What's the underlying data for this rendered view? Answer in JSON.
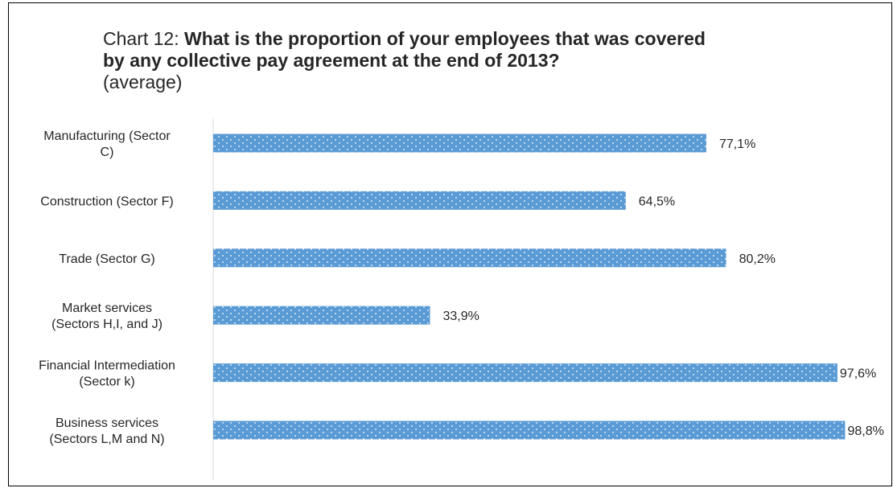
{
  "title": {
    "prefix": "Chart 12:",
    "question_line1": "What is the proportion of your employees that was covered",
    "question_line2": "by any collective pay agreement at the end of 2013?",
    "note": "(average)"
  },
  "chart_data": {
    "type": "bar",
    "orientation": "horizontal",
    "categories": [
      [
        "Manufacturing (Sector",
        "C)"
      ],
      [
        "Construction (Sector F)"
      ],
      [
        "Trade (Sector G)"
      ],
      [
        "Market services",
        "(Sectors H,I, and J)"
      ],
      [
        "Financial Intermediation",
        "(Sector k)"
      ],
      [
        "Business services",
        "(Sectors L,M and N)"
      ]
    ],
    "values": [
      77.1,
      64.5,
      80.2,
      33.9,
      97.6,
      98.8
    ],
    "data_labels": [
      "77,1%",
      "64,5%",
      "80,2%",
      "33,9%",
      "97,6%",
      "98,8%"
    ],
    "xlim": [
      0,
      100
    ],
    "bar_color": "#5b9bd5",
    "pattern": "dotted",
    "grid": false,
    "legend": "none"
  }
}
